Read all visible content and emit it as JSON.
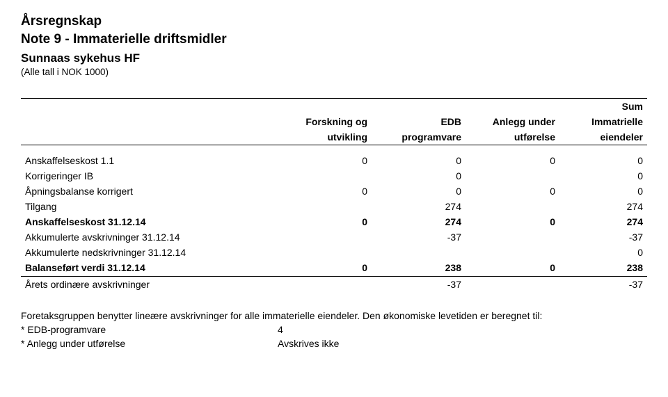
{
  "titles": {
    "doc_title": "Årsregnskap",
    "note_title": "Note 9 - Immaterielle driftsmidler",
    "entity": "Sunnaas sykehus HF",
    "unit": "(Alle tall i NOK 1000)"
  },
  "table": {
    "header_top": [
      "",
      "",
      "",
      "",
      "Sum"
    ],
    "header_line1": [
      "",
      "Forskning og",
      "EDB",
      "Anlegg under",
      "Immatrielle"
    ],
    "header_line2": [
      "",
      "utvikling",
      "programvare",
      "utførelse",
      "eiendeler"
    ],
    "rows": [
      {
        "label": "Anskaffelseskost 1.1",
        "c1": "0",
        "c2": "0",
        "c3": "0",
        "c4": "0",
        "bold": false
      },
      {
        "label": "Korrigeringer IB",
        "c1": "",
        "c2": "0",
        "c3": "",
        "c4": "0",
        "bold": false
      },
      {
        "label": "Åpningsbalanse korrigert",
        "c1": "0",
        "c2": "0",
        "c3": "0",
        "c4": "0",
        "bold": false
      },
      {
        "label": "Tilgang",
        "c1": "",
        "c2": "274",
        "c3": "",
        "c4": "274",
        "bold": false
      },
      {
        "label": "Anskaffelseskost 31.12.14",
        "c1": "0",
        "c2": "274",
        "c3": "0",
        "c4": "274",
        "bold": true
      },
      {
        "label": "Akkumulerte avskrivninger 31.12.14",
        "c1": "",
        "c2": "-37",
        "c3": "",
        "c4": "-37",
        "bold": false
      },
      {
        "label": "Akkumulerte nedskrivninger 31.12.14",
        "c1": "",
        "c2": "",
        "c3": "",
        "c4": "0",
        "bold": false
      },
      {
        "label": "Balanseført verdi 31.12.14",
        "c1": "0",
        "c2": "238",
        "c3": "0",
        "c4": "238",
        "bold": true
      },
      {
        "label": "Årets ordinære avskrivninger",
        "c1": "",
        "c2": "-37",
        "c3": "",
        "c4": "-37",
        "bold": false
      }
    ],
    "styling": {
      "font_size_pt": 11,
      "header_font_weight": "bold",
      "border_color": "#000000",
      "background_color": "#ffffff",
      "text_color": "#000000",
      "col_widths_pct": [
        41,
        15,
        15,
        15,
        14
      ],
      "rule_above_header": true,
      "rule_below_header": true,
      "rule_after_row_index": 7
    }
  },
  "footer": {
    "line1": "Foretaksgruppen benytter lineære avskrivninger for alle immaterielle eiendeler. Den økonomiske levetiden er beregnet til:",
    "items": [
      {
        "k": "* EDB-programvare",
        "v": "4"
      },
      {
        "k": "* Anlegg under utførelse",
        "v": "Avskrives ikke"
      }
    ]
  }
}
